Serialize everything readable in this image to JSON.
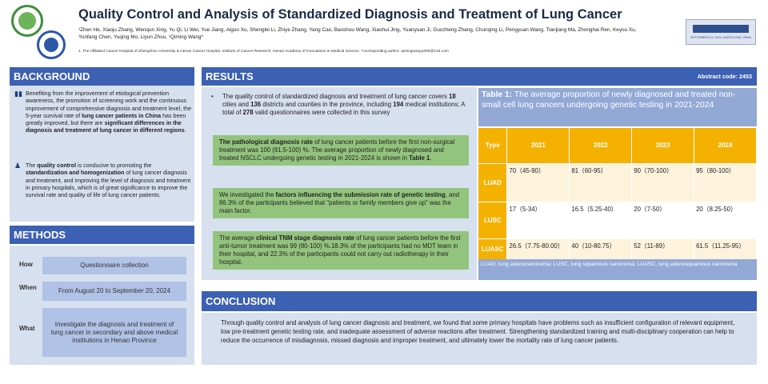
{
  "header": {
    "title": "Quality Control and Analysis of Standardized Diagnosis and Treatment of Lung Cancer",
    "authors_line1": "¹Zhen He, Xiaoju Zhang, Wenqun Xing, Yu Qi, Li Wei, Yue Jiang, Aiguo Xu, Shenglei Li, Zhiye Zhang, Yang Cao, Baoshou Wang, Xiaohui Jing, Yuanyuan Ji, Guozheng Zhang, Chunqing Li, Pengyuan Wang, Tianjiang Ma, Zhonghai Ren, Keyou Xu,",
    "authors_line2": "Yunfang Chen, Yuqing Mo, Liyun Zhou, ¹Qiming Wang*",
    "affiliation": "1. The Affiliated Cancer Hospital of Zhengzhou University & Henan Cancer Hospital, Institute of Cancer Research, Henan Academy of Innovations in Medical Science. *corresponding author: qimingwang1006@126.com",
    "conference_text": "SEPTEMBER 6-9, 2024 | BARCELONA, SPAIN"
  },
  "background": {
    "heading": "BACKGROUND",
    "p1_a": "Benefiting from the improvement of etiological prevention awareness, the promotion of screening work and the continuous improvement of comprehensive diagnosis and treatment level, the 5-year survival rate of ",
    "p1_b": "lung cancer patients in China",
    "p1_c": " has been greatly improved, but there are ",
    "p1_d": "significant differences in the diagnosis and treatment of lung cancer in different regions",
    "p1_e": ".",
    "p2_a": "The ",
    "p2_b": "quality control",
    "p2_c": " is conducive to promoting the ",
    "p2_d": "standardization and homogenization",
    "p2_e": " of lung cancer diagnosis and treatment, and improving the level of diagnosis and treatment in primary hospitals, which is of great significance to improve the survival rate and quality of life of lung cancer patients."
  },
  "methods": {
    "heading": "METHODS",
    "how_label": "How",
    "how_value": "Questionnaire collection",
    "when_label": "When",
    "when_value": "From August 20 to September 20, 2024",
    "what_label": "What",
    "what_value": "Investigate the diagnosis and treatment of lung cancer in secondary and above medical institutions in Henan Province"
  },
  "results": {
    "heading": "RESULTS",
    "abstract_code": "Abstract code: 2453",
    "bullet_a": "The quality control of standardized diagnosis and treatment of lung cancer covers ",
    "bullet_b": "18",
    "bullet_c": " cities and ",
    "bullet_d": "136",
    "bullet_e": " districts and counties in the province, including ",
    "bullet_f": "194",
    "bullet_g": " medical institutions; A total of ",
    "bullet_h": "278",
    "bullet_i": " valid questionnaires were collected in this survey",
    "box1_a": "The pathological diagnosis rate",
    "box1_b": " of lung cancer patients before the first non-surgical treatment was 100 (81.5-100) %. The average proportion of newly diagnosed and treated NSCLC undergoing genetic testing in 2021-2024 is shown in ",
    "box1_c": "Table 1",
    "box1_d": ".",
    "box2_a": "We investigated the ",
    "box2_b": "factors influencing the submission rate of genetic testing",
    "box2_c": ", and 86.3% of the participants believed that \"patients or family members give up\" was the main factor.",
    "box3_a": "The average ",
    "box3_b": "clinical TNM stage diagnosis rate",
    "box3_c": " of lung cancer patients before the first anti-tumor treatment was 99 (80-100) %.18.3% of the participants had no MDT team in their hospital, and 22.3% of the participants could not carry out radiotherapy in their hospital."
  },
  "table": {
    "title_a": "Table 1:",
    "title_b": " The average proportion of newly diagnosed and treated non-small cell lung cancers undergoing genetic testing in 2021-2024",
    "headers": [
      "Type",
      "2021",
      "2022",
      "2023",
      "2024"
    ],
    "rows": [
      [
        "LUAD",
        "70（45-90）",
        "81（60-95）",
        "90（70-100）",
        "95（80-100）"
      ],
      [
        "LUSC",
        "17（5-34）",
        "16.5（5.25-40）",
        "20（7-50）",
        "20（8.25-50）"
      ],
      [
        "LUASC",
        "26.5（7.75-80.00）",
        "40（10-80.75）",
        "52（11-89）",
        "61.5（11.25-95）"
      ]
    ],
    "footnote": "LUAD, lung adenocarcinoma; LUSC, lung squamous carcinoma; LUASC, lung adenosquamous carcinoma"
  },
  "conclusion": {
    "heading": "CONCLUSION",
    "text": "Through quality control and analysis of lung cancer diagnosis and treatment, we found that some primary hospitals have problems such as insufficient configuration of relevant equipment, low pre-treatment genetic testing rate, and inadequate assessment of adverse reactions after treatment. Strengthening standardized training and multi-disciplinary cooperation can help to reduce the occurrence of misdiagnosis, missed diagnosis and improper treatment, and ultimately lower the mortality rate of lung cancer patients."
  },
  "icons": {
    "background_p1": "book-icon",
    "background_p2": "people-icon"
  }
}
